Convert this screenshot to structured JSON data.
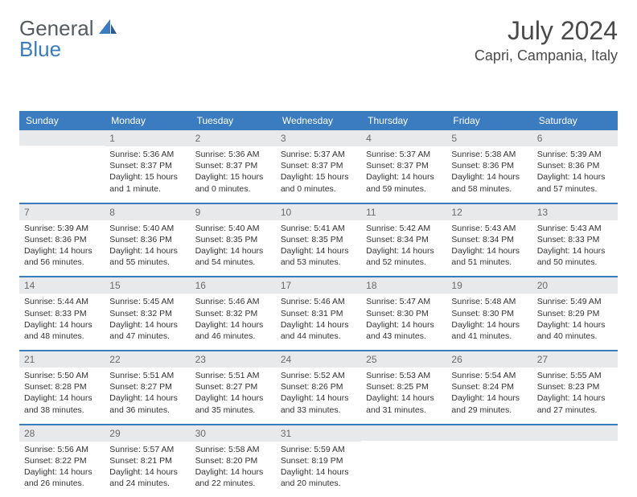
{
  "brand": {
    "part1": "General",
    "part2": "Blue",
    "text_color": "#555b61",
    "accent_color": "#3b7bbf"
  },
  "title": {
    "month": "July 2024",
    "location": "Capri, Campania, Italy",
    "title_fontsize": 32,
    "location_fontsize": 18,
    "color": "#4a4a4a"
  },
  "calendar": {
    "header_bg": "#3b7bbf",
    "header_fg": "#ffffff",
    "daynum_bg": "#e8e9ea",
    "row_border_color": "#3b7bbf",
    "day_labels": [
      "Sunday",
      "Monday",
      "Tuesday",
      "Wednesday",
      "Thursday",
      "Friday",
      "Saturday"
    ],
    "weeks": [
      [
        {
          "day": "",
          "sunrise": "",
          "sunset": "",
          "daylight": ""
        },
        {
          "day": "1",
          "sunrise": "Sunrise: 5:36 AM",
          "sunset": "Sunset: 8:37 PM",
          "daylight": "Daylight: 15 hours and 1 minute."
        },
        {
          "day": "2",
          "sunrise": "Sunrise: 5:36 AM",
          "sunset": "Sunset: 8:37 PM",
          "daylight": "Daylight: 15 hours and 0 minutes."
        },
        {
          "day": "3",
          "sunrise": "Sunrise: 5:37 AM",
          "sunset": "Sunset: 8:37 PM",
          "daylight": "Daylight: 15 hours and 0 minutes."
        },
        {
          "day": "4",
          "sunrise": "Sunrise: 5:37 AM",
          "sunset": "Sunset: 8:37 PM",
          "daylight": "Daylight: 14 hours and 59 minutes."
        },
        {
          "day": "5",
          "sunrise": "Sunrise: 5:38 AM",
          "sunset": "Sunset: 8:36 PM",
          "daylight": "Daylight: 14 hours and 58 minutes."
        },
        {
          "day": "6",
          "sunrise": "Sunrise: 5:39 AM",
          "sunset": "Sunset: 8:36 PM",
          "daylight": "Daylight: 14 hours and 57 minutes."
        }
      ],
      [
        {
          "day": "7",
          "sunrise": "Sunrise: 5:39 AM",
          "sunset": "Sunset: 8:36 PM",
          "daylight": "Daylight: 14 hours and 56 minutes."
        },
        {
          "day": "8",
          "sunrise": "Sunrise: 5:40 AM",
          "sunset": "Sunset: 8:36 PM",
          "daylight": "Daylight: 14 hours and 55 minutes."
        },
        {
          "day": "9",
          "sunrise": "Sunrise: 5:40 AM",
          "sunset": "Sunset: 8:35 PM",
          "daylight": "Daylight: 14 hours and 54 minutes."
        },
        {
          "day": "10",
          "sunrise": "Sunrise: 5:41 AM",
          "sunset": "Sunset: 8:35 PM",
          "daylight": "Daylight: 14 hours and 53 minutes."
        },
        {
          "day": "11",
          "sunrise": "Sunrise: 5:42 AM",
          "sunset": "Sunset: 8:34 PM",
          "daylight": "Daylight: 14 hours and 52 minutes."
        },
        {
          "day": "12",
          "sunrise": "Sunrise: 5:43 AM",
          "sunset": "Sunset: 8:34 PM",
          "daylight": "Daylight: 14 hours and 51 minutes."
        },
        {
          "day": "13",
          "sunrise": "Sunrise: 5:43 AM",
          "sunset": "Sunset: 8:33 PM",
          "daylight": "Daylight: 14 hours and 50 minutes."
        }
      ],
      [
        {
          "day": "14",
          "sunrise": "Sunrise: 5:44 AM",
          "sunset": "Sunset: 8:33 PM",
          "daylight": "Daylight: 14 hours and 48 minutes."
        },
        {
          "day": "15",
          "sunrise": "Sunrise: 5:45 AM",
          "sunset": "Sunset: 8:32 PM",
          "daylight": "Daylight: 14 hours and 47 minutes."
        },
        {
          "day": "16",
          "sunrise": "Sunrise: 5:46 AM",
          "sunset": "Sunset: 8:32 PM",
          "daylight": "Daylight: 14 hours and 46 minutes."
        },
        {
          "day": "17",
          "sunrise": "Sunrise: 5:46 AM",
          "sunset": "Sunset: 8:31 PM",
          "daylight": "Daylight: 14 hours and 44 minutes."
        },
        {
          "day": "18",
          "sunrise": "Sunrise: 5:47 AM",
          "sunset": "Sunset: 8:30 PM",
          "daylight": "Daylight: 14 hours and 43 minutes."
        },
        {
          "day": "19",
          "sunrise": "Sunrise: 5:48 AM",
          "sunset": "Sunset: 8:30 PM",
          "daylight": "Daylight: 14 hours and 41 minutes."
        },
        {
          "day": "20",
          "sunrise": "Sunrise: 5:49 AM",
          "sunset": "Sunset: 8:29 PM",
          "daylight": "Daylight: 14 hours and 40 minutes."
        }
      ],
      [
        {
          "day": "21",
          "sunrise": "Sunrise: 5:50 AM",
          "sunset": "Sunset: 8:28 PM",
          "daylight": "Daylight: 14 hours and 38 minutes."
        },
        {
          "day": "22",
          "sunrise": "Sunrise: 5:51 AM",
          "sunset": "Sunset: 8:27 PM",
          "daylight": "Daylight: 14 hours and 36 minutes."
        },
        {
          "day": "23",
          "sunrise": "Sunrise: 5:51 AM",
          "sunset": "Sunset: 8:27 PM",
          "daylight": "Daylight: 14 hours and 35 minutes."
        },
        {
          "day": "24",
          "sunrise": "Sunrise: 5:52 AM",
          "sunset": "Sunset: 8:26 PM",
          "daylight": "Daylight: 14 hours and 33 minutes."
        },
        {
          "day": "25",
          "sunrise": "Sunrise: 5:53 AM",
          "sunset": "Sunset: 8:25 PM",
          "daylight": "Daylight: 14 hours and 31 minutes."
        },
        {
          "day": "26",
          "sunrise": "Sunrise: 5:54 AM",
          "sunset": "Sunset: 8:24 PM",
          "daylight": "Daylight: 14 hours and 29 minutes."
        },
        {
          "day": "27",
          "sunrise": "Sunrise: 5:55 AM",
          "sunset": "Sunset: 8:23 PM",
          "daylight": "Daylight: 14 hours and 27 minutes."
        }
      ],
      [
        {
          "day": "28",
          "sunrise": "Sunrise: 5:56 AM",
          "sunset": "Sunset: 8:22 PM",
          "daylight": "Daylight: 14 hours and 26 minutes."
        },
        {
          "day": "29",
          "sunrise": "Sunrise: 5:57 AM",
          "sunset": "Sunset: 8:21 PM",
          "daylight": "Daylight: 14 hours and 24 minutes."
        },
        {
          "day": "30",
          "sunrise": "Sunrise: 5:58 AM",
          "sunset": "Sunset: 8:20 PM",
          "daylight": "Daylight: 14 hours and 22 minutes."
        },
        {
          "day": "31",
          "sunrise": "Sunrise: 5:59 AM",
          "sunset": "Sunset: 8:19 PM",
          "daylight": "Daylight: 14 hours and 20 minutes."
        },
        {
          "day": "",
          "sunrise": "",
          "sunset": "",
          "daylight": ""
        },
        {
          "day": "",
          "sunrise": "",
          "sunset": "",
          "daylight": ""
        },
        {
          "day": "",
          "sunrise": "",
          "sunset": "",
          "daylight": ""
        }
      ]
    ]
  }
}
